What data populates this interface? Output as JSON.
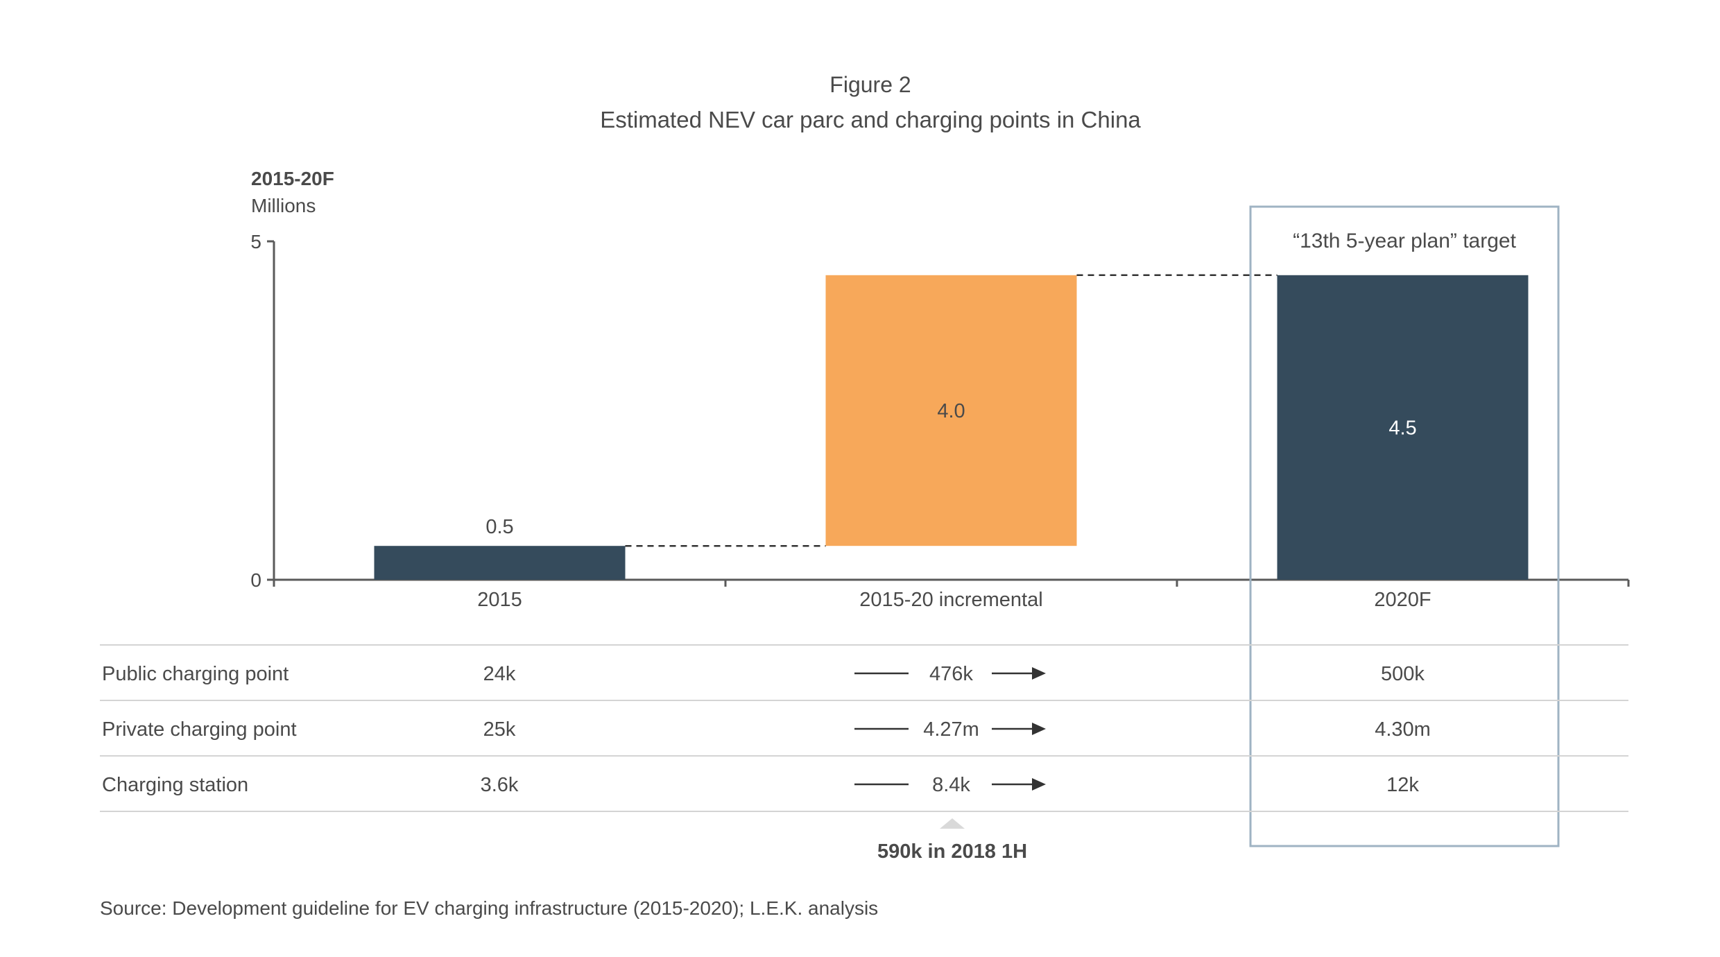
{
  "figure": {
    "label": "Figure 2",
    "title": "Estimated NEV car parc and charging points in China",
    "source": "Source: Development guideline for EV charging infrastructure (2015-2020); L.E.K. analysis"
  },
  "colors": {
    "dark_bar": "#354b5c",
    "orange_bar": "#f7a85a",
    "highlight_box": "#9fb3c3",
    "axis": "#5a5a5a",
    "text": "#4a4a4a",
    "rule": "#d4d4d4"
  },
  "chart_data": {
    "type": "bar",
    "subtype": "waterfall",
    "y_label_line1": "2015-20F",
    "y_label_line2": "Millions",
    "ylim": [
      0,
      5
    ],
    "yticks": [
      "0",
      "5"
    ],
    "categories": [
      "2015",
      "2015-20 incremental",
      "2020F"
    ],
    "bars": [
      {
        "category": "2015",
        "base": 0,
        "value": 0.5,
        "label": "0.5",
        "color_key": "dark_bar",
        "label_position": "above"
      },
      {
        "category": "2015-20 incremental",
        "base": 0.5,
        "value": 4.0,
        "label": "4.0",
        "color_key": "orange_bar",
        "label_position": "inside"
      },
      {
        "category": "2020F",
        "base": 0,
        "value": 4.5,
        "label": "4.5",
        "color_key": "dark_bar",
        "label_position": "inside"
      }
    ],
    "grid": false,
    "highlight_label": "“13th 5-year plan” target",
    "highlight_category": "2020F"
  },
  "table": {
    "rows": [
      {
        "label": "Public charging point",
        "v2015": "24k",
        "incremental": "476k",
        "v2020": "500k"
      },
      {
        "label": "Private charging point",
        "v2015": "25k",
        "incremental": "4.27m",
        "v2020": "4.30m"
      },
      {
        "label": "Charging station",
        "v2015": "3.6k",
        "incremental": "8.4k",
        "v2020": "12k"
      }
    ],
    "callout": "590k in 2018 1H"
  }
}
